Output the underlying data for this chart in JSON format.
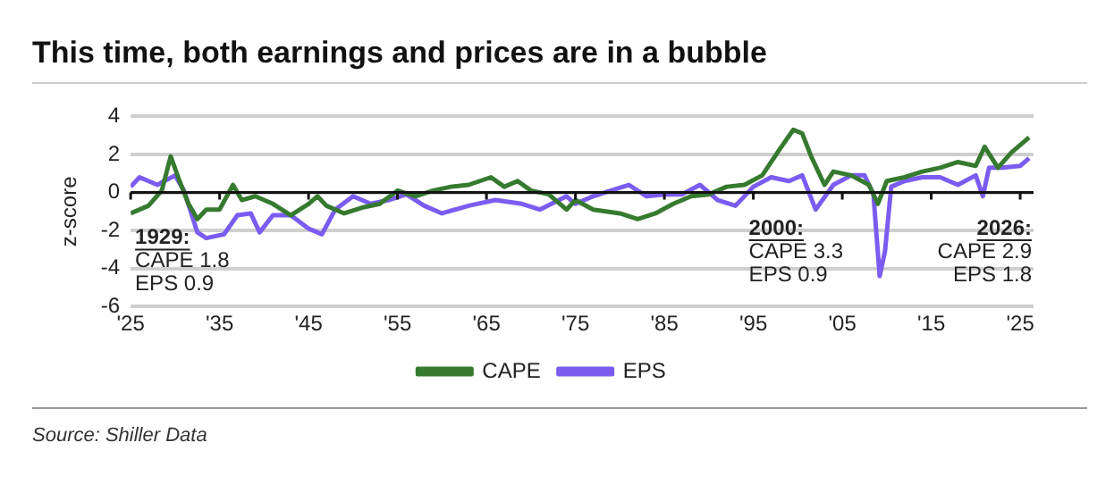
{
  "chart_data": {
    "type": "line",
    "title": "This time, both earnings and prices are in a bubble",
    "ylabel": "z-score",
    "xlim": [
      1925,
      2026.5
    ],
    "xticks": [
      {
        "value": 1925,
        "label": "'25"
      },
      {
        "value": 1935,
        "label": "'35"
      },
      {
        "value": 1945,
        "label": "'45"
      },
      {
        "value": 1955,
        "label": "'55"
      },
      {
        "value": 1965,
        "label": "'65"
      },
      {
        "value": 1975,
        "label": "'75"
      },
      {
        "value": 1985,
        "label": "'85"
      },
      {
        "value": 1995,
        "label": "'95"
      },
      {
        "value": 2005,
        "label": "'05"
      },
      {
        "value": 2015,
        "label": "'15"
      },
      {
        "value": 2025,
        "label": "'25"
      }
    ],
    "ylim": [
      -6,
      4
    ],
    "yticks": [
      -6,
      -4,
      -2,
      0,
      2,
      4
    ],
    "grid": "y",
    "legend": "bottom",
    "marker": "none",
    "series": [
      {
        "name": "CAPE",
        "color": "#367a30",
        "x": [
          1925,
          1927,
          1928.5,
          1929.5,
          1930.5,
          1931.5,
          1932.5,
          1933.5,
          1935,
          1936.5,
          1937.5,
          1939,
          1941,
          1943,
          1945,
          1946,
          1947,
          1949,
          1951,
          1953,
          1955,
          1957,
          1959,
          1961,
          1963,
          1965.5,
          1967,
          1968.5,
          1970,
          1972,
          1974,
          1975,
          1977,
          1980,
          1982,
          1984,
          1986,
          1988,
          1990,
          1992,
          1994,
          1996,
          1998,
          1999.5,
          2000.5,
          2001.5,
          2003,
          2004,
          2006,
          2008,
          2009,
          2010,
          2012,
          2014,
          2016,
          2018,
          2020,
          2021,
          2022.5,
          2024,
          2026
        ],
        "values": [
          -1.1,
          -0.7,
          0.1,
          1.9,
          0.6,
          -0.6,
          -1.4,
          -0.9,
          -0.9,
          0.4,
          -0.4,
          -0.2,
          -0.6,
          -1.2,
          -0.6,
          -0.2,
          -0.7,
          -1.1,
          -0.8,
          -0.6,
          0.1,
          -0.2,
          0.1,
          0.3,
          0.4,
          0.8,
          0.3,
          0.6,
          0.1,
          -0.1,
          -0.9,
          -0.4,
          -0.9,
          -1.1,
          -1.4,
          -1.1,
          -0.6,
          -0.2,
          -0.1,
          0.3,
          0.4,
          0.9,
          2.3,
          3.3,
          3.1,
          1.9,
          0.4,
          1.1,
          0.9,
          0.4,
          -0.6,
          0.6,
          0.8,
          1.1,
          1.3,
          1.6,
          1.4,
          2.4,
          1.3,
          2.1,
          2.9
        ]
      },
      {
        "name": "EPS",
        "color": "#7b5cf0",
        "x": [
          1925,
          1926,
          1928,
          1930,
          1931,
          1932.5,
          1933.5,
          1935.5,
          1937,
          1938.5,
          1939.5,
          1941,
          1943,
          1945,
          1946.5,
          1948,
          1950,
          1952,
          1954,
          1956,
          1958,
          1960,
          1963,
          1966,
          1969,
          1971,
          1974,
          1975,
          1977,
          1979,
          1981,
          1983,
          1985,
          1987,
          1989,
          1991,
          1993,
          1995,
          1997,
          1999,
          2000.5,
          2002,
          2004,
          2006,
          2007.5,
          2008.5,
          2009.2,
          2009.8,
          2010.5,
          2012,
          2014,
          2016,
          2018,
          2020,
          2020.8,
          2021.5,
          2023,
          2025,
          2026
        ],
        "values": [
          0.3,
          0.8,
          0.4,
          0.9,
          0.1,
          -2.1,
          -2.4,
          -2.2,
          -1.2,
          -1.1,
          -2.1,
          -1.2,
          -1.2,
          -1.9,
          -2.2,
          -0.9,
          -0.2,
          -0.6,
          -0.4,
          -0.1,
          -0.7,
          -1.1,
          -0.7,
          -0.4,
          -0.6,
          -0.9,
          -0.2,
          -0.6,
          -0.2,
          0.1,
          0.4,
          -0.2,
          -0.1,
          -0.1,
          0.4,
          -0.4,
          -0.7,
          0.3,
          0.8,
          0.6,
          0.9,
          -0.9,
          0.4,
          0.9,
          0.9,
          -0.1,
          -4.4,
          -3.1,
          0.3,
          0.6,
          0.8,
          0.8,
          0.4,
          0.9,
          -0.2,
          1.3,
          1.3,
          1.4,
          1.8
        ]
      }
    ],
    "annotations": [
      "1929:\nCAPE 1.8\nEPS 0.9",
      "2000:\nCAPE 3.3\nEPS 0.9",
      "2026:\nCAPE 2.9\nEPS 1.8",
      "Source: Shiller Data"
    ]
  }
}
